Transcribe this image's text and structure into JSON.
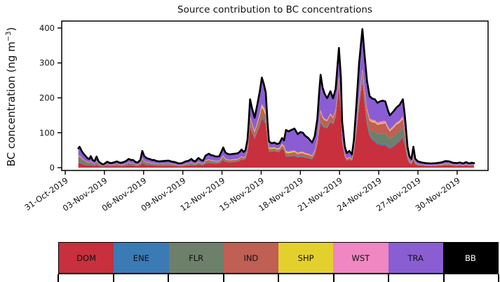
{
  "figure": {
    "title": "Source contribution to BC concentrations",
    "ylabel_main": "BC concentration (ng m",
    "ylabel_sup": "−3",
    "ylabel_close": ")"
  },
  "legend": {
    "items": [
      {
        "code": "DOM",
        "color": "#c7303c",
        "text_color": "#111111"
      },
      {
        "code": "ENE",
        "color": "#3a7ab5",
        "text_color": "#111111"
      },
      {
        "code": "FLR",
        "color": "#6d8069",
        "text_color": "#111111"
      },
      {
        "code": "IND",
        "color": "#c05f53",
        "text_color": "#111111"
      },
      {
        "code": "SHP",
        "color": "#e4d02c",
        "text_color": "#111111"
      },
      {
        "code": "WST",
        "color": "#f086c2",
        "text_color": "#111111"
      },
      {
        "code": "TRA",
        "color": "#8a5ed2",
        "text_color": "#111111"
      },
      {
        "code": "BB",
        "color": "#000000",
        "text_color": "#ffffff"
      }
    ]
  },
  "chart_data": {
    "type": "area",
    "stacked": true,
    "title": "Source contribution to BC concentrations",
    "xlabel": "",
    "ylabel": "BC concentration (ng m−3)",
    "x_unit": "days after 31-Oct-2019 00:00",
    "ylim": [
      -8,
      420
    ],
    "xlim_days": [
      -0.27,
      32.37
    ],
    "grid": false,
    "legend_position": "bottom bar",
    "outline_color": "#000000",
    "y_ticks": [
      0,
      100,
      200,
      300,
      400
    ],
    "x_ticks": [
      {
        "day": 0,
        "label": "31-Oct-2019"
      },
      {
        "day": 3,
        "label": "03-Nov-2019"
      },
      {
        "day": 6,
        "label": "06-Nov-2019"
      },
      {
        "day": 9,
        "label": "09-Nov-2019"
      },
      {
        "day": 12,
        "label": "12-Nov-2019"
      },
      {
        "day": 15,
        "label": "15-Nov-2019"
      },
      {
        "day": 18,
        "label": "18-Nov-2019"
      },
      {
        "day": 21,
        "label": "21-Nov-2019"
      },
      {
        "day": 24,
        "label": "24-Nov-2019"
      },
      {
        "day": 27,
        "label": "27-Nov-2019"
      },
      {
        "day": 30,
        "label": "30-Nov-2019"
      }
    ],
    "x": [
      1.0,
      1.1,
      1.3,
      1.45,
      1.7,
      1.85,
      1.95,
      2.1,
      2.25,
      2.4,
      2.55,
      2.75,
      2.9,
      3.1,
      3.2,
      3.45,
      3.6,
      3.8,
      3.95,
      4.2,
      4.4,
      4.65,
      4.85,
      5.05,
      5.2,
      5.4,
      5.55,
      5.75,
      5.9,
      6.05,
      6.25,
      6.45,
      6.65,
      6.8,
      7.0,
      7.2,
      7.5,
      7.8,
      7.95,
      8.2,
      8.4,
      8.7,
      8.95,
      9.2,
      9.45,
      9.65,
      9.8,
      9.95,
      10.2,
      10.4,
      10.55,
      10.75,
      11.0,
      11.15,
      11.3,
      11.5,
      11.65,
      11.8,
      11.95,
      12.1,
      12.25,
      12.4,
      12.6,
      12.8,
      13.0,
      13.2,
      13.35,
      13.5,
      13.65,
      13.8,
      13.95,
      14.05,
      14.15,
      14.3,
      14.5,
      14.7,
      14.9,
      15.05,
      15.2,
      15.35,
      15.5,
      15.6,
      15.8,
      16.0,
      16.2,
      16.4,
      16.6,
      16.75,
      16.9,
      17.1,
      17.3,
      17.55,
      17.8,
      18.0,
      18.2,
      18.35,
      18.6,
      18.9,
      19.1,
      19.3,
      19.45,
      19.55,
      19.7,
      19.85,
      20.05,
      20.3,
      20.5,
      20.7,
      20.95,
      21.1,
      21.2,
      21.4,
      21.55,
      21.75,
      21.95,
      22.1,
      22.3,
      22.5,
      22.75,
      22.9,
      23.1,
      23.3,
      23.5,
      23.7,
      23.9,
      24.1,
      24.3,
      24.5,
      24.7,
      24.85,
      25.1,
      25.35,
      25.6,
      25.85,
      26.0,
      26.2,
      26.35,
      26.5,
      26.65,
      26.8,
      27.0,
      27.3,
      27.6,
      28.0,
      28.4,
      28.8,
      29.1,
      29.4,
      29.7,
      30.0,
      30.2,
      30.45,
      30.7,
      30.9,
      31.1,
      31.3
    ],
    "total": [
      55,
      60,
      45,
      38,
      27,
      25,
      33,
      22,
      19,
      32,
      18,
      12,
      9,
      14,
      17,
      13,
      14,
      16,
      18,
      14,
      15,
      19,
      25,
      22,
      22,
      16,
      15,
      22,
      48,
      33,
      27,
      25,
      22,
      22,
      19,
      18,
      19,
      20,
      20,
      17,
      16,
      12,
      13,
      18,
      20,
      25,
      20,
      18,
      28,
      22,
      20,
      35,
      40,
      36,
      35,
      32,
      32,
      33,
      45,
      58,
      44,
      40,
      38,
      39,
      40,
      41,
      45,
      52,
      45,
      50,
      80,
      130,
      196,
      170,
      143,
      180,
      220,
      258,
      240,
      215,
      120,
      75,
      70,
      72,
      68,
      70,
      85,
      78,
      108,
      104,
      108,
      112,
      96,
      102,
      100,
      92,
      85,
      72,
      90,
      139,
      220,
      266,
      230,
      212,
      199,
      219,
      199,
      225,
      343,
      260,
      132,
      60,
      42,
      48,
      38,
      80,
      186,
      300,
      397,
      330,
      249,
      205,
      198,
      196,
      186,
      190,
      192,
      190,
      165,
      150,
      160,
      172,
      180,
      196,
      150,
      60,
      32,
      25,
      60,
      25,
      18,
      15,
      13,
      12,
      13,
      15,
      19,
      18,
      14,
      13,
      15,
      12,
      16,
      12,
      14,
      13
    ],
    "series_order_bottom_to_top": [
      "DOM",
      "ENE",
      "FLR",
      "IND",
      "SHP",
      "WST",
      "TRA",
      "BB"
    ],
    "sources": [
      {
        "name": "DOM",
        "color": "#c7303c",
        "fraction_keyframes": [
          [
            1,
            0.22
          ],
          [
            3,
            0.3
          ],
          [
            6,
            0.3
          ],
          [
            9,
            0.3
          ],
          [
            11,
            0.35
          ],
          [
            13,
            0.42
          ],
          [
            13.9,
            0.52
          ],
          [
            14.15,
            0.62
          ],
          [
            15.05,
            0.56
          ],
          [
            15.5,
            0.6
          ],
          [
            15.8,
            0.65
          ],
          [
            16.8,
            0.62
          ],
          [
            16.9,
            0.3
          ],
          [
            18.3,
            0.3
          ],
          [
            18.9,
            0.33
          ],
          [
            19.3,
            0.48
          ],
          [
            19.55,
            0.5
          ],
          [
            20.05,
            0.58
          ],
          [
            20.95,
            0.7
          ],
          [
            21.2,
            0.55
          ],
          [
            21.6,
            0.48
          ],
          [
            22.0,
            0.5
          ],
          [
            22.75,
            0.64
          ],
          [
            23.1,
            0.5
          ],
          [
            23.5,
            0.4
          ],
          [
            24.3,
            0.33
          ],
          [
            25.0,
            0.38
          ],
          [
            25.85,
            0.45
          ],
          [
            26.35,
            0.4
          ],
          [
            26.65,
            0.42
          ],
          [
            27.0,
            0.4
          ],
          [
            29.0,
            0.4
          ],
          [
            31.3,
            0.42
          ]
        ]
      },
      {
        "name": "ENE",
        "color": "#3a7ab5",
        "fraction_keyframes": [
          [
            1,
            0.02
          ],
          [
            14,
            0.012
          ],
          [
            20,
            0.01
          ],
          [
            23.5,
            0.02
          ],
          [
            25,
            0.022
          ],
          [
            27,
            0.02
          ],
          [
            31.3,
            0.02
          ]
        ]
      },
      {
        "name": "FLR",
        "color": "#6d8069",
        "fraction_keyframes": [
          [
            1,
            0.24
          ],
          [
            2.5,
            0.22
          ],
          [
            4,
            0.2
          ],
          [
            6,
            0.18
          ],
          [
            8,
            0.2
          ],
          [
            10,
            0.15
          ],
          [
            12,
            0.1
          ],
          [
            13.5,
            0.06
          ],
          [
            14.15,
            0.035
          ],
          [
            15.5,
            0.035
          ],
          [
            16.9,
            0.03
          ],
          [
            19,
            0.035
          ],
          [
            19.55,
            0.02
          ],
          [
            20.95,
            0.015
          ],
          [
            22.0,
            0.04
          ],
          [
            22.75,
            0.02
          ],
          [
            23.1,
            0.05
          ],
          [
            23.6,
            0.13
          ],
          [
            24.3,
            0.16
          ],
          [
            25.3,
            0.17
          ],
          [
            25.85,
            0.12
          ],
          [
            26.5,
            0.08
          ],
          [
            27.5,
            0.09
          ],
          [
            29,
            0.1
          ],
          [
            31.3,
            0.09
          ]
        ]
      },
      {
        "name": "IND",
        "color": "#c05f53",
        "fraction_keyframes": [
          [
            1,
            0.06
          ],
          [
            3,
            0.07
          ],
          [
            6,
            0.07
          ],
          [
            9,
            0.07
          ],
          [
            12,
            0.07
          ],
          [
            13.9,
            0.08
          ],
          [
            14.15,
            0.085
          ],
          [
            15.05,
            0.08
          ],
          [
            15.8,
            0.06
          ],
          [
            16.9,
            0.055
          ],
          [
            18,
            0.055
          ],
          [
            19.55,
            0.085
          ],
          [
            20.3,
            0.07
          ],
          [
            20.95,
            0.04
          ],
          [
            21.6,
            0.05
          ],
          [
            22.3,
            0.05
          ],
          [
            22.75,
            0.038
          ],
          [
            23.1,
            0.1
          ],
          [
            23.6,
            0.13
          ],
          [
            24.3,
            0.145
          ],
          [
            25.3,
            0.16
          ],
          [
            25.85,
            0.13
          ],
          [
            26.5,
            0.07
          ],
          [
            27,
            0.07
          ],
          [
            29,
            0.08
          ],
          [
            31.3,
            0.08
          ]
        ]
      },
      {
        "name": "SHP",
        "color": "#e4d02c",
        "fraction_keyframes": [
          [
            1,
            0.012
          ],
          [
            5,
            0.012
          ],
          [
            10,
            0.015
          ],
          [
            13,
            0.02
          ],
          [
            14.15,
            0.012
          ],
          [
            15.6,
            0.03
          ],
          [
            16.8,
            0.035
          ],
          [
            17.5,
            0.025
          ],
          [
            19,
            0.02
          ],
          [
            19.55,
            0.008
          ],
          [
            21,
            0.006
          ],
          [
            21.6,
            0.03
          ],
          [
            22.75,
            0.005
          ],
          [
            23.5,
            0.012
          ],
          [
            25,
            0.012
          ],
          [
            26.5,
            0.015
          ],
          [
            28,
            0.02
          ],
          [
            31.3,
            0.02
          ]
        ]
      },
      {
        "name": "WST",
        "color": "#f086c2",
        "fraction_keyframes": [
          [
            1,
            0.025
          ],
          [
            5,
            0.03
          ],
          [
            10,
            0.03
          ],
          [
            13,
            0.025
          ],
          [
            14.15,
            0.018
          ],
          [
            15.6,
            0.02
          ],
          [
            16.9,
            0.018
          ],
          [
            19,
            0.02
          ],
          [
            19.55,
            0.016
          ],
          [
            20.95,
            0.01
          ],
          [
            21.6,
            0.025
          ],
          [
            22.75,
            0.013
          ],
          [
            23.5,
            0.025
          ],
          [
            24.3,
            0.027
          ],
          [
            25.3,
            0.025
          ],
          [
            26.5,
            0.025
          ],
          [
            28,
            0.027
          ],
          [
            31.3,
            0.028
          ]
        ]
      },
      {
        "name": "TRA",
        "color": "#8a5ed2",
        "fraction_keyframes": [
          [
            1,
            0.4
          ],
          [
            3,
            0.36
          ],
          [
            6,
            0.4
          ],
          [
            9,
            0.38
          ],
          [
            11,
            0.38
          ],
          [
            12.5,
            0.4
          ],
          [
            13.5,
            0.38
          ],
          [
            13.9,
            0.3
          ],
          [
            14.15,
            0.24
          ],
          [
            15.05,
            0.29
          ],
          [
            15.5,
            0.24
          ],
          [
            15.8,
            0.17
          ],
          [
            16.8,
            0.18
          ],
          [
            16.9,
            0.55
          ],
          [
            17.55,
            0.55
          ],
          [
            18.3,
            0.52
          ],
          [
            18.9,
            0.5
          ],
          [
            19.3,
            0.38
          ],
          [
            19.55,
            0.375
          ],
          [
            20.05,
            0.31
          ],
          [
            20.95,
            0.235
          ],
          [
            21.2,
            0.33
          ],
          [
            21.6,
            0.36
          ],
          [
            22.0,
            0.32
          ],
          [
            22.75,
            0.285
          ],
          [
            23.1,
            0.31
          ],
          [
            23.6,
            0.3
          ],
          [
            24.3,
            0.3
          ],
          [
            25.0,
            0.26
          ],
          [
            25.85,
            0.245
          ],
          [
            26.35,
            0.4
          ],
          [
            26.65,
            0.42
          ],
          [
            27.0,
            0.41
          ],
          [
            29.0,
            0.37
          ],
          [
            31.3,
            0.36
          ]
        ]
      },
      {
        "name": "BB",
        "color": "#000000",
        "fraction_keyframes": [
          [
            1,
            0.008
          ],
          [
            31.3,
            0.008
          ]
        ]
      }
    ]
  }
}
